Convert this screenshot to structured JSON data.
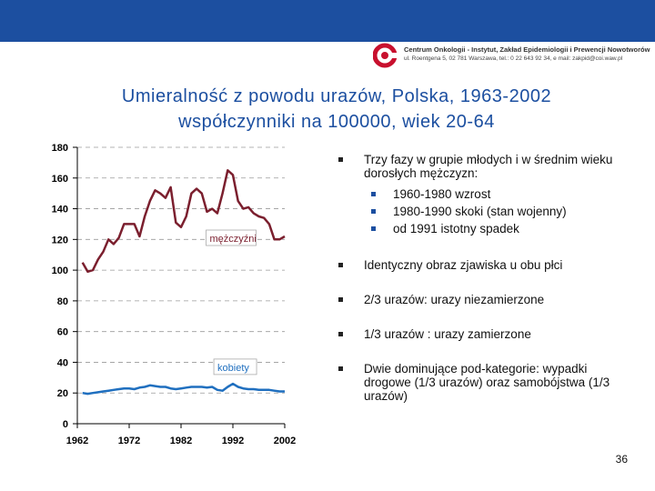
{
  "header": {
    "institution_line1": "Centrum Onkologii - Instytut, Zakład Epidemiologii i Prewencji Nowotworów",
    "institution_line2": "ul. Roentgena 5, 02 781 Warszawa, tel.: 0 22 643 92 34, e mail: zakpid@coi.waw.pl",
    "accent_color": "#1c4fa0",
    "logo_color": "#c8102e"
  },
  "title": {
    "line1": "Umieralność z powodu urazów, Polska, 1963-2002",
    "line2": "współczynniki na 100000, wiek 20-64"
  },
  "chart_data": {
    "type": "line",
    "title": "",
    "xlabel": "",
    "ylabel": "",
    "x_ticks": [
      "1962",
      "1972",
      "1982",
      "1992",
      "2002"
    ],
    "y_ticks": [
      "0",
      "20",
      "40",
      "60",
      "80",
      "100",
      "120",
      "140",
      "160",
      "180"
    ],
    "xlim": [
      1962,
      2002
    ],
    "ylim": [
      0,
      180
    ],
    "grid": "dashed horizontal",
    "series": [
      {
        "name": "mężczyźni",
        "color": "#7b1f2e",
        "x": [
          1963,
          1964,
          1965,
          1966,
          1967,
          1968,
          1969,
          1970,
          1971,
          1972,
          1973,
          1974,
          1975,
          1976,
          1977,
          1978,
          1979,
          1980,
          1981,
          1982,
          1983,
          1984,
          1985,
          1986,
          1987,
          1988,
          1989,
          1990,
          1991,
          1992,
          1993,
          1994,
          1995,
          1996,
          1997,
          1998,
          1999,
          2000,
          2001,
          2002
        ],
        "values": [
          105,
          99,
          100,
          107,
          112,
          120,
          117,
          121,
          130,
          130,
          130,
          122,
          135,
          145,
          152,
          150,
          147,
          154,
          131,
          128,
          135,
          150,
          153,
          150,
          138,
          140,
          137,
          150,
          165,
          162,
          145,
          140,
          141,
          137,
          135,
          134,
          130,
          120,
          120,
          122
        ]
      },
      {
        "name": "kobiety",
        "color": "#1f6fbf",
        "x": [
          1963,
          1964,
          1965,
          1966,
          1967,
          1968,
          1969,
          1970,
          1971,
          1972,
          1973,
          1974,
          1975,
          1976,
          1977,
          1978,
          1979,
          1980,
          1981,
          1982,
          1983,
          1984,
          1985,
          1986,
          1987,
          1988,
          1989,
          1990,
          1991,
          1992,
          1993,
          1994,
          1995,
          1996,
          1997,
          1998,
          1999,
          2000,
          2001,
          2002
        ],
        "values": [
          20,
          19.5,
          20,
          20.5,
          21,
          21.5,
          22,
          22.5,
          23,
          23,
          22.5,
          23.5,
          24,
          25,
          24.5,
          24,
          24,
          23,
          22.5,
          23,
          23.5,
          24,
          24,
          24,
          23.5,
          24,
          22,
          21.5,
          24,
          26,
          24,
          23,
          22.5,
          22.5,
          22,
          22,
          22,
          21.5,
          21,
          21
        ]
      }
    ],
    "annotations": [
      "mężczyźni",
      "kobiety"
    ]
  },
  "bullets": [
    {
      "text": "Trzy fazy w grupie młodych i w średnim wieku dorosłych mężczyzn:",
      "sub": [
        "1960-1980 wzrost",
        "1980-1990 skoki (stan wojenny)",
        "od 1991 istotny spadek"
      ]
    },
    {
      "text": "Identyczny obraz zjawiska u obu płci",
      "sub": []
    },
    {
      "text": "2/3 urazów: urazy niezamierzone",
      "sub": []
    },
    {
      "text": "1/3 urazów : urazy zamierzone",
      "sub": []
    },
    {
      "text": "Dwie dominujące pod-kategorie: wypadki drogowe (1/3 urazów) oraz samobójstwa (1/3 urazów)",
      "sub": []
    }
  ],
  "page_number": "36"
}
